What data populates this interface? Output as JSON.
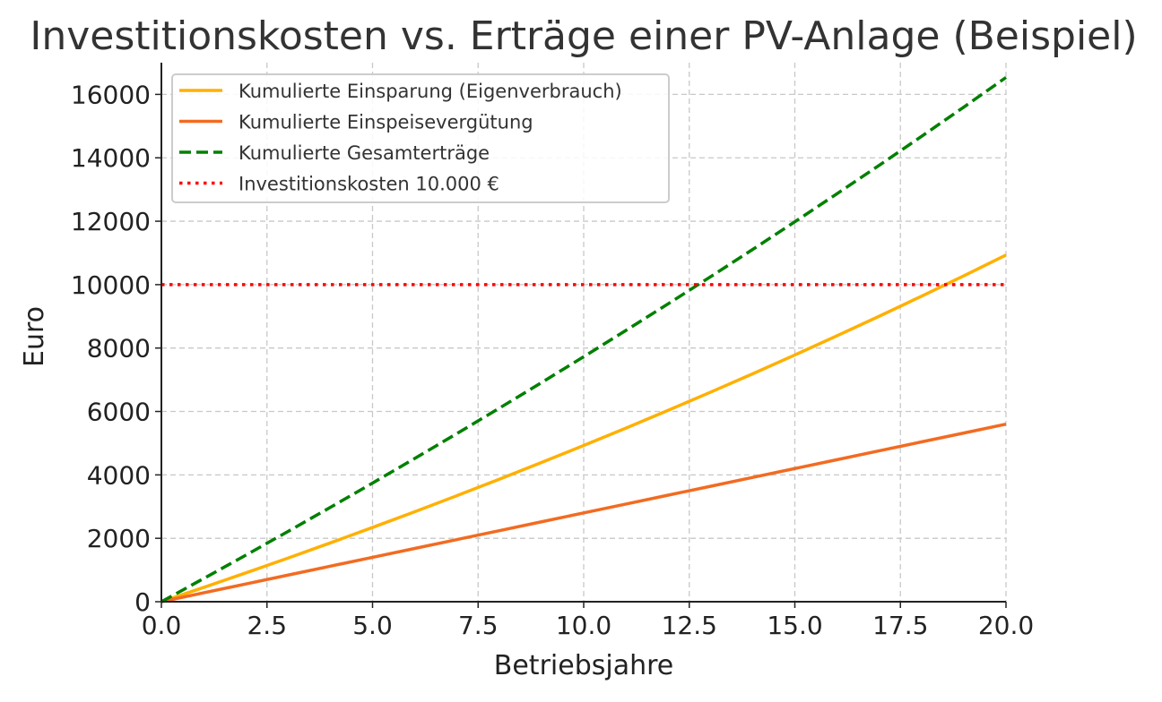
{
  "chart_data": {
    "type": "line",
    "title": "Investitionskosten vs. Erträge einer PV-Anlage (Beispiel)",
    "xlabel": "Betriebsjahre",
    "ylabel": "Euro",
    "xlim": [
      0,
      20
    ],
    "ylim": [
      0,
      17000
    ],
    "xticks": [
      "0.0",
      "2.5",
      "5.0",
      "7.5",
      "10.0",
      "12.5",
      "15.0",
      "17.5",
      "20.0"
    ],
    "yticks": [
      "0",
      "2000",
      "4000",
      "6000",
      "8000",
      "10000",
      "12000",
      "14000",
      "16000"
    ],
    "grid": true,
    "legend_position": "upper-left",
    "x": [
      0,
      1,
      2,
      3,
      4,
      5,
      6,
      7,
      8,
      9,
      10,
      11,
      12,
      13,
      14,
      15,
      16,
      17,
      18,
      19,
      20
    ],
    "series": [
      {
        "name": "Kumulierte Einsparung (Eigenverbrauch)",
        "color": "#FFB000",
        "style": "solid",
        "values": [
          0,
          450,
          909,
          1377,
          1855,
          2342,
          2839,
          3345,
          3862,
          4390,
          4927,
          5476,
          6035,
          6606,
          7188,
          7782,
          8388,
          9005,
          9636,
          10278,
          10934
        ]
      },
      {
        "name": "Kumulierte Einspeisevergütung",
        "color": "#F26B21",
        "style": "solid",
        "values": [
          0,
          280,
          560,
          840,
          1120,
          1400,
          1680,
          1960,
          2240,
          2520,
          2800,
          3080,
          3360,
          3640,
          3920,
          4200,
          4480,
          4760,
          5040,
          5320,
          5600
        ]
      },
      {
        "name": "Kumulierte Gesamterträge",
        "color": "#008000",
        "style": "dashed",
        "values": [
          0,
          730,
          1469,
          2217,
          2975,
          3742,
          4519,
          5305,
          6102,
          6910,
          7727,
          8556,
          9395,
          10246,
          11108,
          11982,
          12868,
          13765,
          14676,
          15598,
          16534
        ]
      },
      {
        "name": "Investitionskosten 10.000 €",
        "color": "#FF0000",
        "style": "dotted",
        "values": [
          10000,
          10000,
          10000,
          10000,
          10000,
          10000,
          10000,
          10000,
          10000,
          10000,
          10000,
          10000,
          10000,
          10000,
          10000,
          10000,
          10000,
          10000,
          10000,
          10000,
          10000
        ]
      }
    ]
  }
}
